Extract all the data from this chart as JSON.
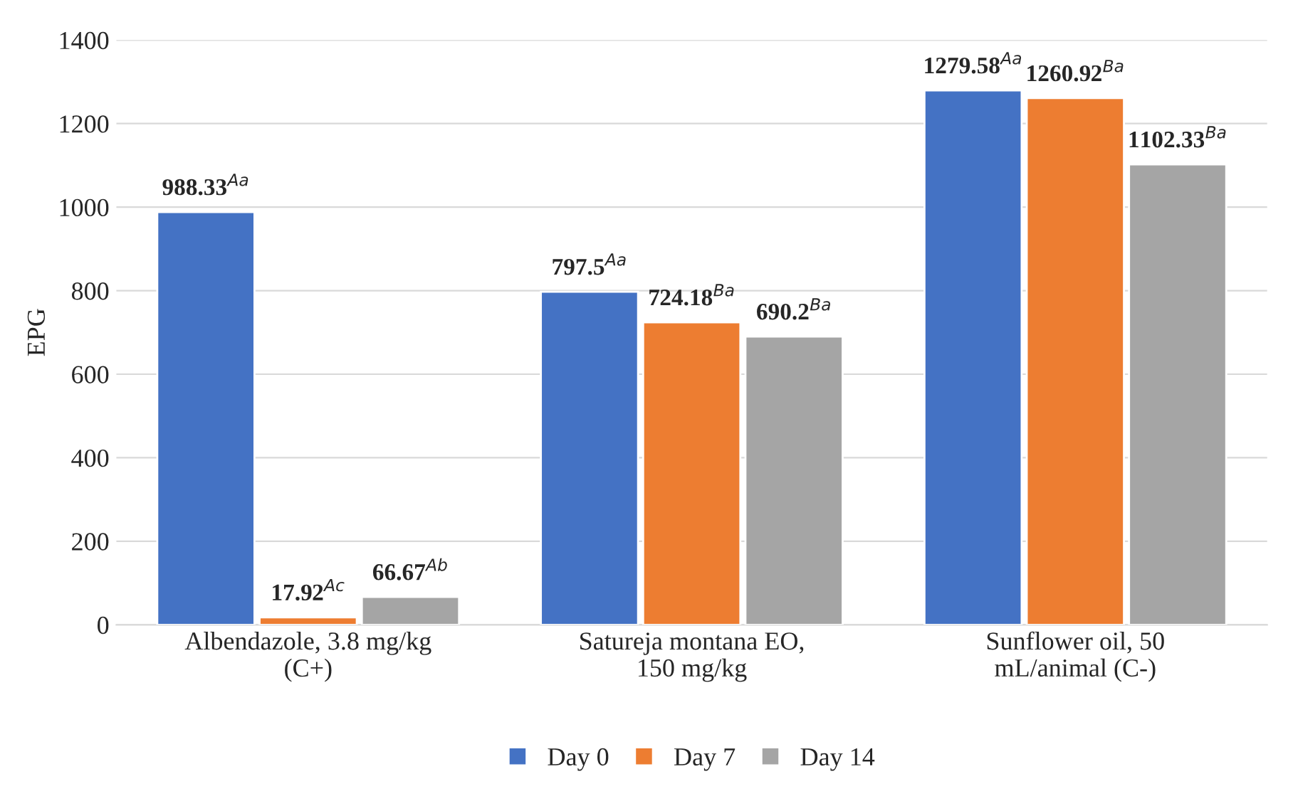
{
  "chart_data": {
    "type": "bar",
    "ylabel": "EPG",
    "categories": [
      "Albendazole, 3.8 mg/kg\n(C+)",
      "Satureja montana EO,\n150 mg/kg",
      "Sunflower oil, 50\nmL/animal (C-)"
    ],
    "series": [
      {
        "name": "Day 0",
        "color": "#4472c4",
        "values": [
          988.33,
          797.5,
          1279.58
        ],
        "value_labels": [
          "988.33$^{Aa}$",
          "797.5$^{Aa}$",
          "1279.58$^{Aa}$"
        ]
      },
      {
        "name": "Day 7",
        "color": "#ed7d31",
        "values": [
          17.92,
          724.18,
          1260.92
        ],
        "value_labels": [
          "17.92$^{Ac}$",
          "724.18$^{Ba}$",
          "1260.92$^{Ba}$"
        ]
      },
      {
        "name": "Day 14",
        "color": "#a5a5a5",
        "values": [
          66.67,
          690.2,
          1102.33
        ],
        "value_labels": [
          "66.67$^{Ab}$",
          "690.2$^{Ba}$",
          "1102.33$^{Ba}$"
        ]
      }
    ],
    "ylim": [
      0,
      1400
    ],
    "yticks": [
      0,
      200,
      400,
      600,
      800,
      1000,
      1200,
      1400
    ],
    "grid": "y",
    "legend": "bottom"
  }
}
